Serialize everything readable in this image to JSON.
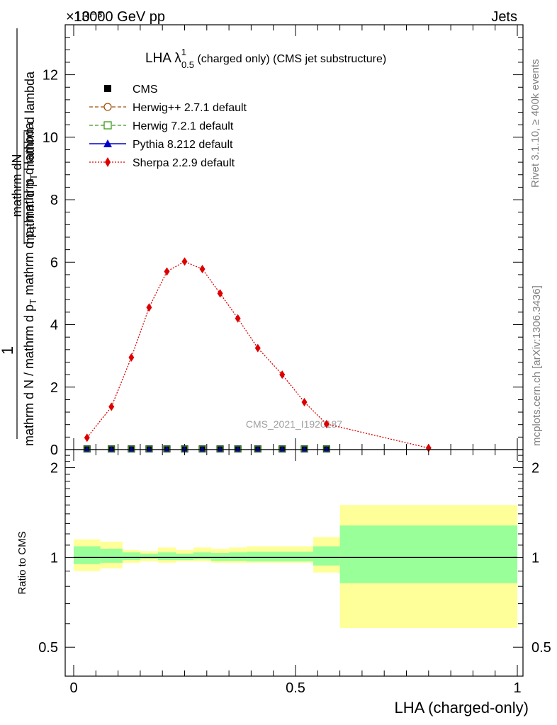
{
  "header": {
    "energy": "13000 GeV pp",
    "process": "Jets",
    "multiplier": "×10⁻³"
  },
  "side_texts": {
    "rivet": "Rivet 3.1.10, ≥ 400k events",
    "mcplots": "mcplots.cern.ch [arXiv:1306.3436]"
  },
  "chart_data": [
    {
      "type": "line",
      "title": "LHA λ",
      "title_sup": "1",
      "title_sub": "0.5",
      "title_rest": " (charged only) (CMS jet substructure)",
      "analysis_label": "CMS_2021_I1920187",
      "ylabel_numerator": "1",
      "ylabel_line1": "mathrm dN",
      "ylabel_line2": "mathrm d p",
      "ylabel_line2b": "T",
      "ylabel_line2c": " mathrm d lambda",
      "ylabel_den_a": "mathrm d N / mathrm d p",
      "ylabel_den_b": "T",
      "ylabel_den_c": "mathrm d p",
      "ylabel_den_d": "T",
      "ylabel_den_e": "mathrm d lambda",
      "xlim": [
        0,
        1
      ],
      "ylim": [
        0,
        13.6
      ],
      "yscale_note": "values in units of 10^-3",
      "y_ticks": [
        0,
        2,
        4,
        6,
        8,
        10,
        12
      ],
      "y_tick_labels": [
        "0",
        "2",
        "4",
        "6",
        "8",
        "10",
        "12"
      ],
      "legend": [
        {
          "name": "CMS",
          "color": "#000000",
          "marker": "square"
        },
        {
          "name": "Herwig++ 2.7.1 default",
          "color": "#a0520b",
          "marker": "circle-open",
          "dash": "dashed"
        },
        {
          "name": "Herwig 7.2.1 default",
          "color": "#3c9a1a",
          "marker": "square-open",
          "dash": "dashed"
        },
        {
          "name": "Pythia 8.212 default",
          "color": "#0000cc",
          "marker": "triangle"
        },
        {
          "name": "Sherpa 2.2.9 default",
          "color": "#dd0000",
          "marker": "diamond",
          "dash": "dotted"
        }
      ],
      "bins": [
        {
          "lo": 0.0,
          "hi": 0.06
        },
        {
          "lo": 0.06,
          "hi": 0.11
        },
        {
          "lo": 0.11,
          "hi": 0.15
        },
        {
          "lo": 0.15,
          "hi": 0.19
        },
        {
          "lo": 0.19,
          "hi": 0.23
        },
        {
          "lo": 0.23,
          "hi": 0.27
        },
        {
          "lo": 0.27,
          "hi": 0.31
        },
        {
          "lo": 0.31,
          "hi": 0.35
        },
        {
          "lo": 0.35,
          "hi": 0.39
        },
        {
          "lo": 0.39,
          "hi": 0.44
        },
        {
          "lo": 0.44,
          "hi": 0.5
        },
        {
          "lo": 0.5,
          "hi": 0.54
        },
        {
          "lo": 0.54,
          "hi": 0.6
        },
        {
          "lo": 0.6,
          "hi": 1.0
        }
      ],
      "series": [
        {
          "name": "CMS",
          "x": [
            0.03,
            0.085,
            0.13,
            0.17,
            0.21,
            0.25,
            0.29,
            0.33,
            0.37,
            0.415,
            0.47,
            0.52,
            0.57
          ],
          "y": [
            0.02,
            0.02,
            0.02,
            0.02,
            0.02,
            0.02,
            0.02,
            0.02,
            0.02,
            0.02,
            0.02,
            0.02,
            0.02
          ]
        },
        {
          "name": "Sherpa 2.2.9 default",
          "x": [
            0.03,
            0.085,
            0.13,
            0.17,
            0.21,
            0.25,
            0.29,
            0.33,
            0.37,
            0.415,
            0.47,
            0.52,
            0.57,
            0.8
          ],
          "y": [
            0.38,
            1.37,
            2.95,
            4.55,
            5.7,
            6.02,
            5.78,
            5.0,
            4.2,
            3.25,
            2.4,
            1.52,
            0.82,
            0.05
          ]
        }
      ]
    },
    {
      "type": "line",
      "title": "ratio",
      "ylabel": "Ratio to CMS",
      "xlabel": "LHA (charged-only)",
      "xlim": [
        0,
        1
      ],
      "ylim": [
        0.4,
        2.3
      ],
      "y_ticks": [
        0.5,
        1,
        2
      ],
      "y_tick_labels": [
        "0.5",
        "1",
        "2"
      ],
      "x_ticks": [
        0,
        0.5,
        1
      ],
      "x_tick_labels": [
        "0",
        "0.5",
        "1"
      ],
      "reference": 1.0,
      "bands": {
        "bins": [
          [
            0.0,
            0.06
          ],
          [
            0.06,
            0.11
          ],
          [
            0.11,
            0.15
          ],
          [
            0.15,
            0.19
          ],
          [
            0.19,
            0.23
          ],
          [
            0.23,
            0.27
          ],
          [
            0.27,
            0.31
          ],
          [
            0.31,
            0.35
          ],
          [
            0.35,
            0.39
          ],
          [
            0.39,
            0.44
          ],
          [
            0.44,
            0.54
          ],
          [
            0.54,
            0.6
          ],
          [
            0.6,
            1.0
          ]
        ],
        "outer_lo": [
          0.9,
          0.92,
          0.96,
          0.97,
          0.96,
          0.97,
          0.97,
          0.96,
          0.96,
          0.96,
          0.96,
          0.89,
          0.58
        ],
        "outer_hi": [
          1.15,
          1.13,
          1.06,
          1.05,
          1.08,
          1.06,
          1.08,
          1.07,
          1.08,
          1.09,
          1.09,
          1.17,
          1.5
        ],
        "inner_lo": [
          0.95,
          0.96,
          0.98,
          0.99,
          0.98,
          0.98,
          0.985,
          0.975,
          0.975,
          0.97,
          0.97,
          0.94,
          0.82
        ],
        "inner_hi": [
          1.09,
          1.07,
          1.04,
          1.03,
          1.04,
          1.03,
          1.04,
          1.035,
          1.04,
          1.045,
          1.045,
          1.09,
          1.28
        ],
        "outer_color": "#ffff99",
        "inner_color": "#99ff99"
      }
    }
  ]
}
